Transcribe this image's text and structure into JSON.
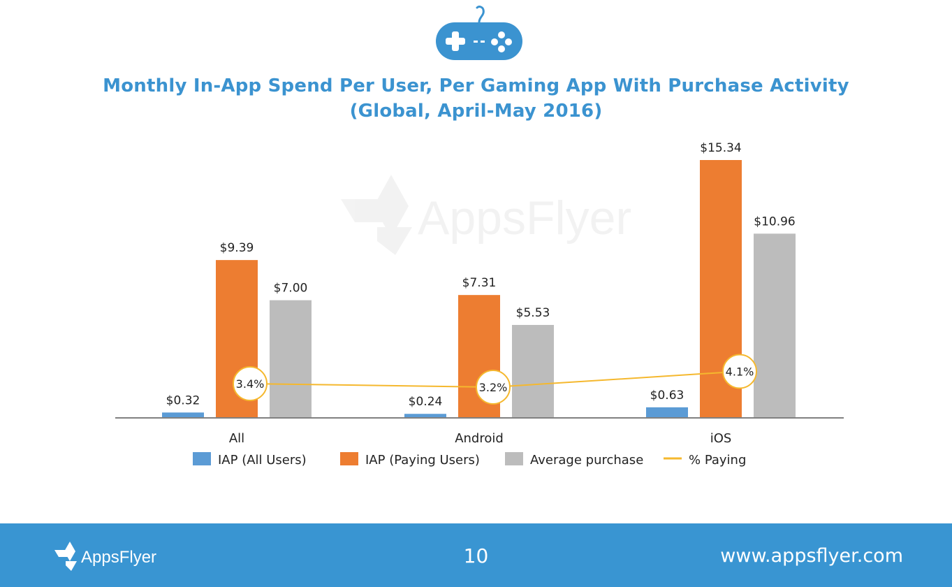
{
  "title_line1": "Monthly In-App Spend Per User, Per Gaming App With Purchase Activity",
  "title_line2": "(Global, April-May 2016)",
  "watermark": "AppsFlyer",
  "chart_data": {
    "type": "bar",
    "categories": [
      "All",
      "Android",
      "iOS"
    ],
    "series": [
      {
        "name": "IAP (All Users)",
        "color": "#5b9bd5",
        "values": [
          0.32,
          0.24,
          0.63
        ],
        "labels": [
          "$0.32",
          "$0.24",
          "$0.63"
        ]
      },
      {
        "name": "IAP (Paying Users)",
        "color": "#ed7d31",
        "values": [
          9.39,
          7.31,
          15.34
        ],
        "labels": [
          "$9.39",
          "$7.31",
          "$15.34"
        ]
      },
      {
        "name": "Average purchase",
        "color": "#bcbcbc",
        "values": [
          7.0,
          5.53,
          10.96
        ],
        "labels": [
          "$7.00",
          "$5.53",
          "$10.96"
        ]
      }
    ],
    "line_series": {
      "name": "% Paying",
      "color": "#f5b82e",
      "values": [
        3.4,
        3.2,
        4.1
      ],
      "labels": [
        "3.4%",
        "3.2%",
        "4.1%"
      ]
    },
    "ylim": [
      0,
      15.34
    ],
    "grid": false,
    "legend": "bottom"
  },
  "footer": {
    "logo": "AppsFlyer",
    "page_number": "10",
    "url": "www.appsflyer.com"
  }
}
